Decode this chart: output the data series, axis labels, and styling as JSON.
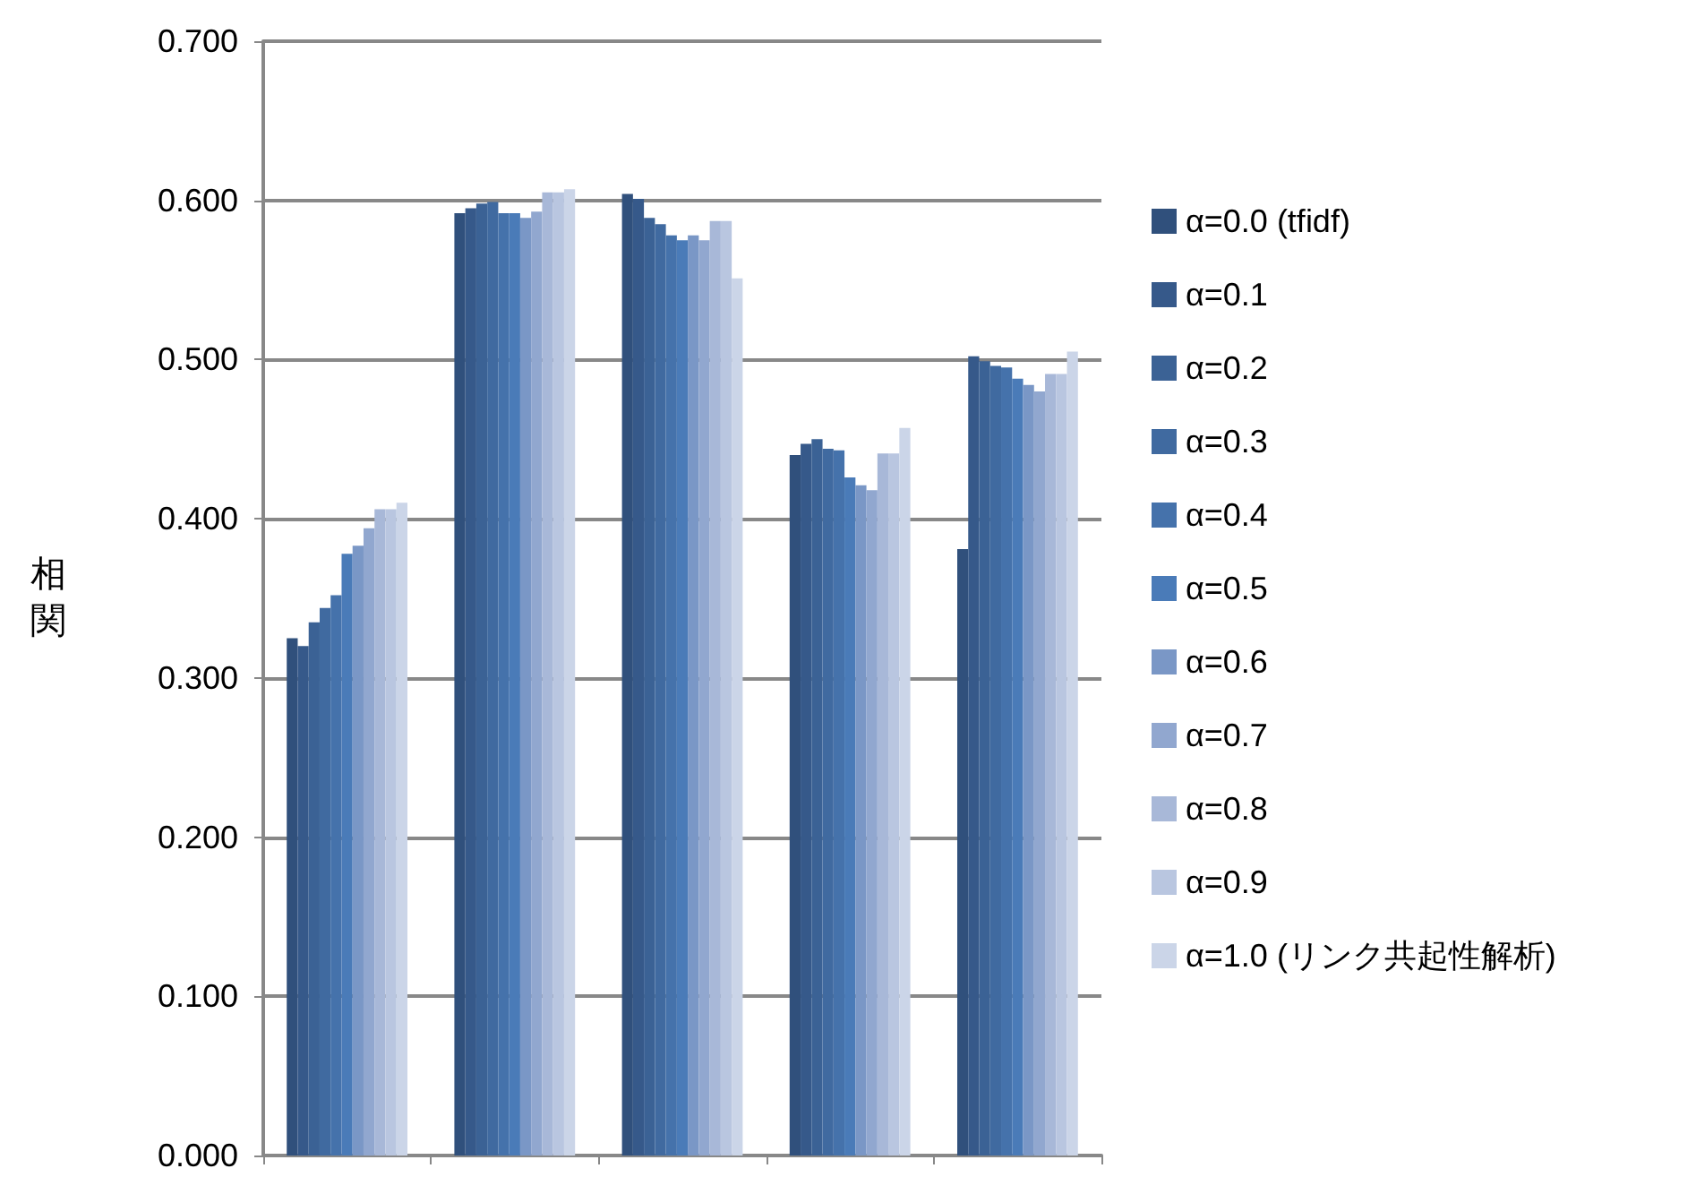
{
  "chart_data": {
    "type": "bar",
    "ylabel": "相関",
    "categories": [
      null,
      null,
      null,
      null,
      null
    ],
    "series": [
      {
        "name": "α=0.0 (tfidf)",
        "color": "#30507c",
        "values": [
          0.325,
          0.592,
          0.604,
          0.44,
          0.381
        ]
      },
      {
        "name": "α=0.1",
        "color": "#36598a",
        "values": [
          0.32,
          0.595,
          0.601,
          0.447,
          0.502
        ]
      },
      {
        "name": "α=0.2",
        "color": "#3b6295",
        "values": [
          0.335,
          0.598,
          0.589,
          0.45,
          0.499
        ]
      },
      {
        "name": "α=0.3",
        "color": "#406aa0",
        "values": [
          0.344,
          0.599,
          0.585,
          0.444,
          0.496
        ]
      },
      {
        "name": "α=0.4",
        "color": "#4572ab",
        "values": [
          0.352,
          0.592,
          0.578,
          0.443,
          0.495
        ]
      },
      {
        "name": "α=0.5",
        "color": "#4a7bb8",
        "values": [
          0.378,
          0.592,
          0.575,
          0.426,
          0.488
        ]
      },
      {
        "name": "α=0.6",
        "color": "#7a97c6",
        "values": [
          0.383,
          0.589,
          0.578,
          0.421,
          0.484
        ]
      },
      {
        "name": "α=0.7",
        "color": "#91a7cf",
        "values": [
          0.394,
          0.593,
          0.575,
          0.418,
          0.48
        ]
      },
      {
        "name": "α=0.8",
        "color": "#a8b8d8",
        "values": [
          0.406,
          0.605,
          0.587,
          0.441,
          0.491
        ]
      },
      {
        "name": "α=0.9",
        "color": "#b9c6e0",
        "values": [
          0.406,
          0.605,
          0.587,
          0.441,
          0.491
        ]
      },
      {
        "name": "α=1.0 (リンク共起性解析)",
        "color": "#cbd5e8",
        "values": [
          0.41,
          0.607,
          0.551,
          0.457,
          0.505
        ]
      }
    ],
    "ylim": [
      0,
      0.7
    ],
    "yticks": [
      {
        "value": 0,
        "label": "0.000"
      },
      {
        "value": 0.1,
        "label": "0.100"
      },
      {
        "value": 0.2,
        "label": "0.200"
      },
      {
        "value": 0.3,
        "label": "0.300"
      },
      {
        "value": 0.4,
        "label": "0.400"
      },
      {
        "value": 0.5,
        "label": "0.500"
      },
      {
        "value": 0.6,
        "label": "0.600"
      },
      {
        "value": 0.7,
        "label": "0.700"
      }
    ],
    "grid": "y",
    "legend": "right"
  }
}
